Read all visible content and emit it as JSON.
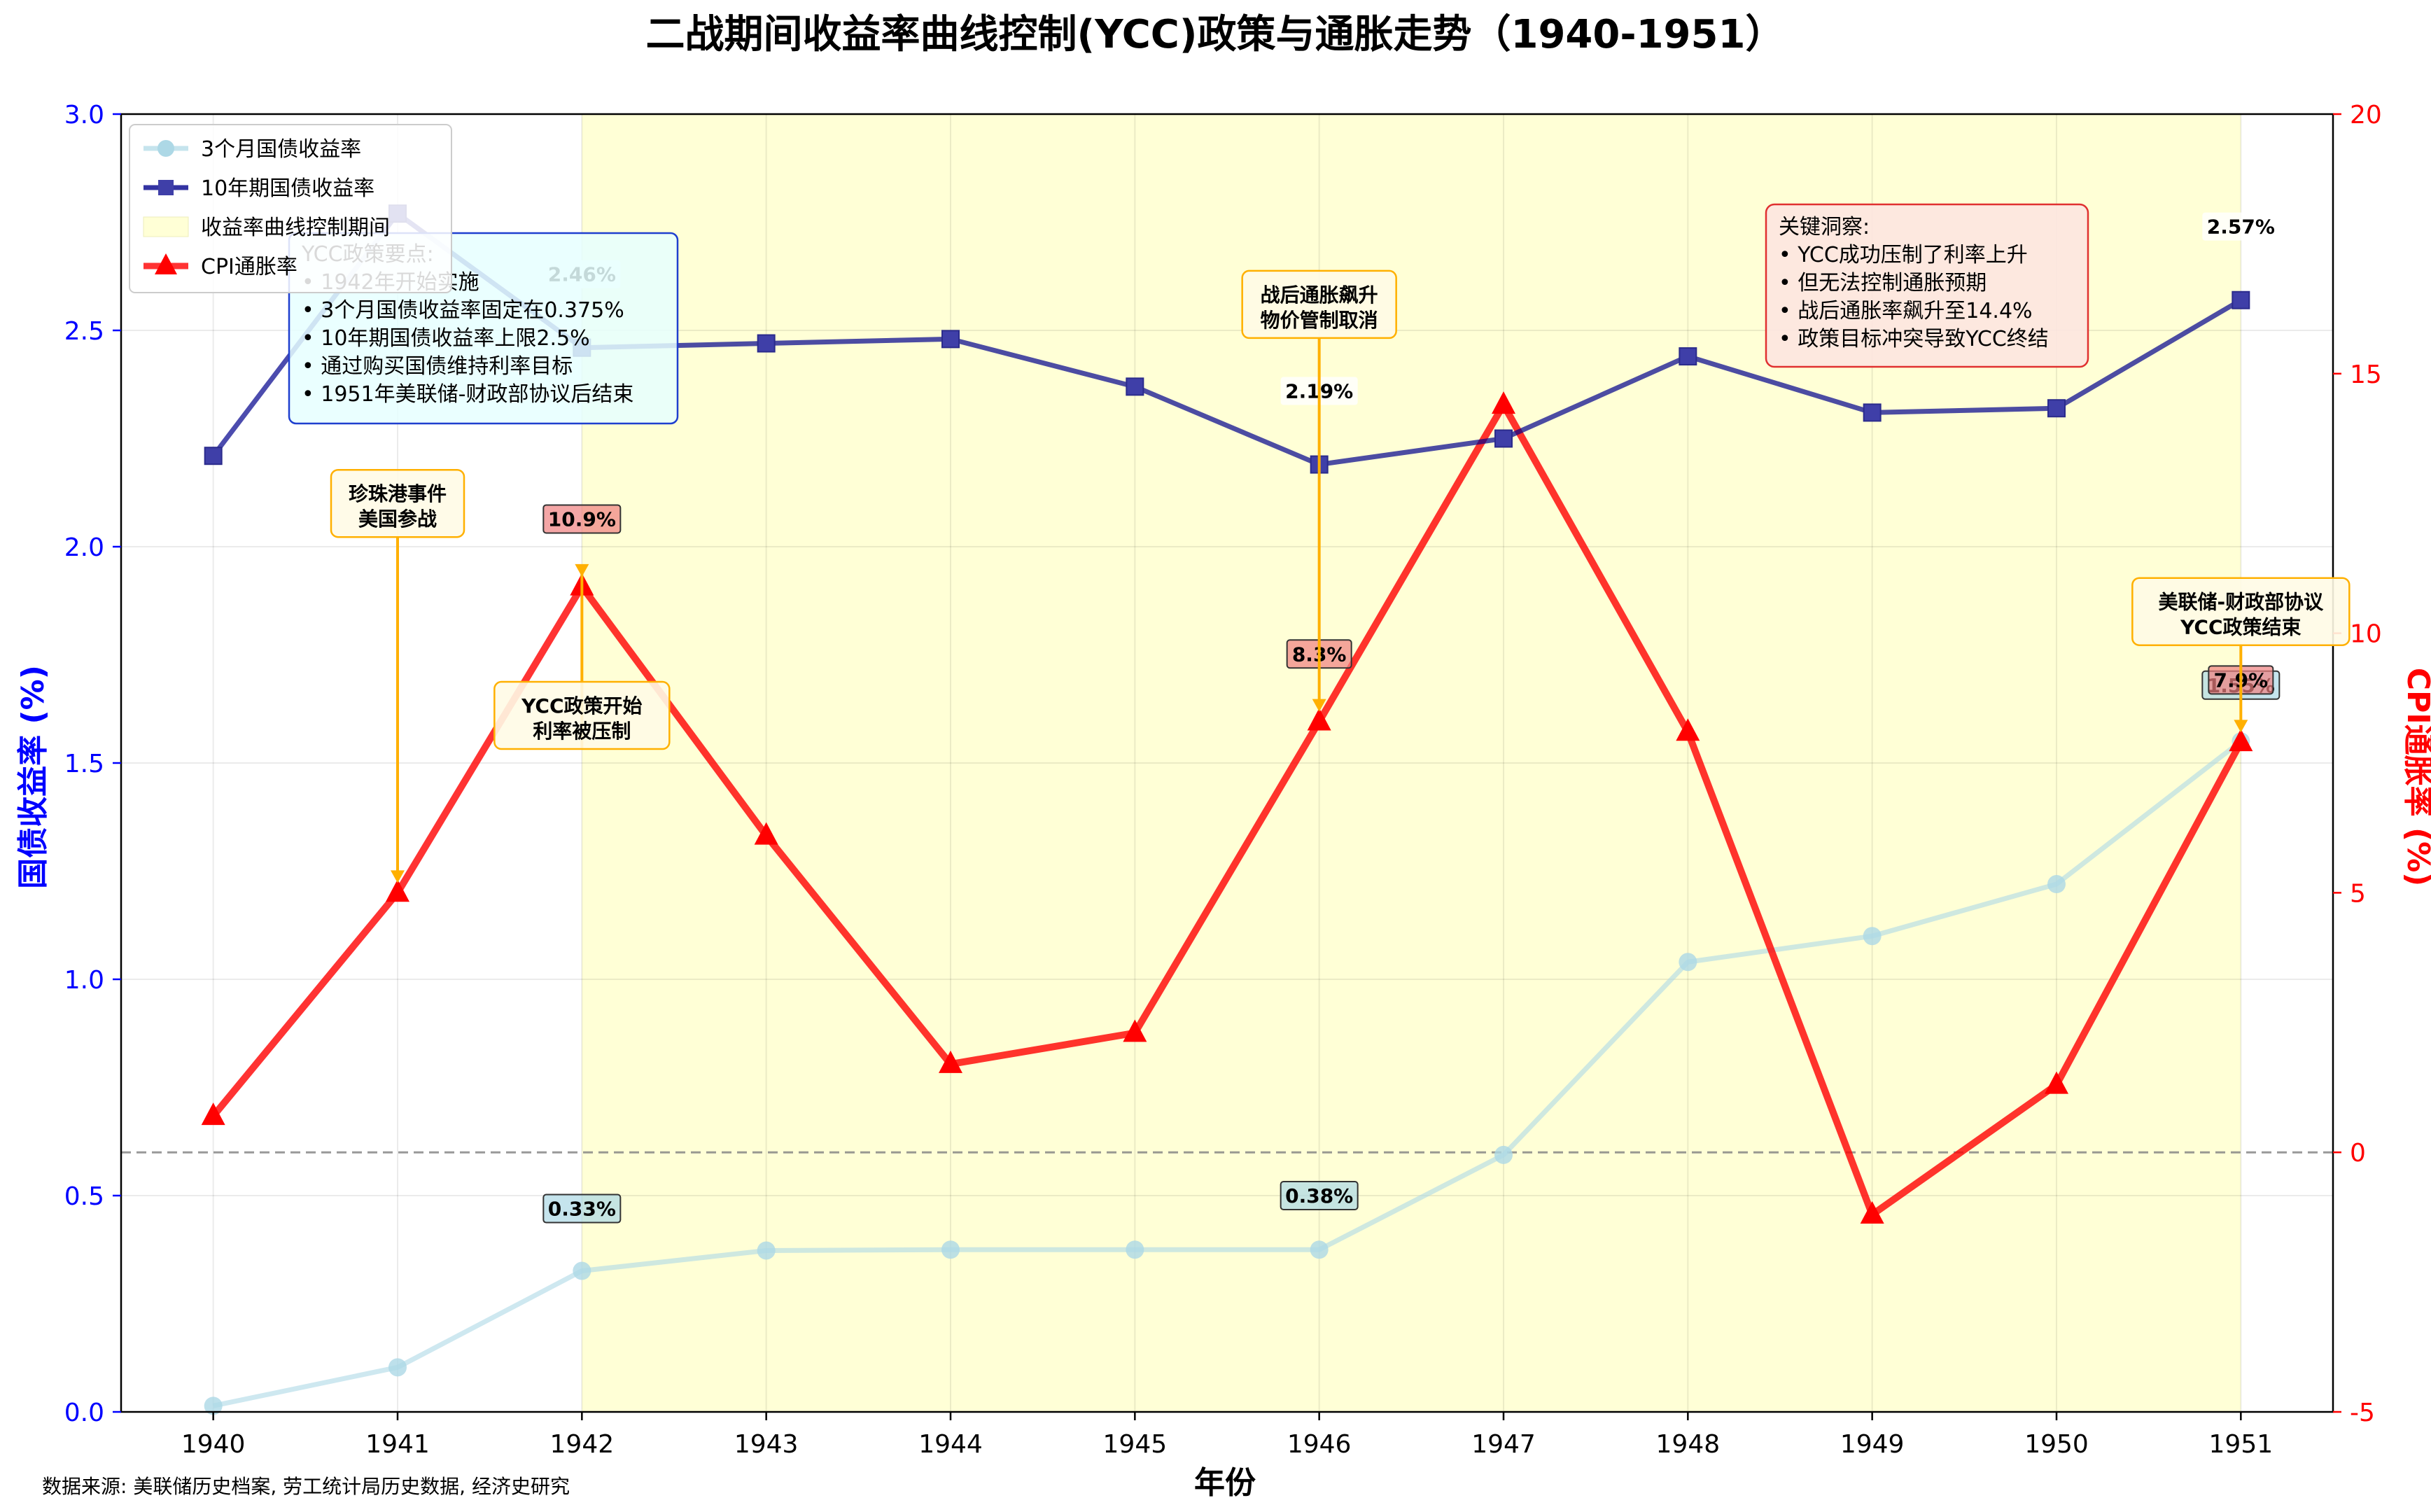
{
  "chart_data": {
    "type": "line",
    "title": "二战期间收益率曲线控制(YCC)政策与通胀走势（1940-1951）",
    "xlabel": "年份",
    "ylabel_left": "国债收益率 (%)",
    "ylabel_right": "CPI通胀率 (%)",
    "source_note": "数据来源: 美联储历史档案, 劳工统计局历史数据, 经济史研究",
    "x": [
      1940,
      1941,
      1942,
      1943,
      1944,
      1945,
      1946,
      1947,
      1948,
      1949,
      1950,
      1951
    ],
    "ylim_left": [
      0,
      3.0
    ],
    "ylim_right": [
      -5,
      20
    ],
    "yticks_left": [
      "0.0",
      "0.5",
      "1.0",
      "1.5",
      "2.0",
      "2.5",
      "3.0"
    ],
    "yticks_right": [
      "-5",
      "0",
      "5",
      "10",
      "15",
      "20"
    ],
    "grid": true,
    "legend_position": "top-left",
    "shaded_period": {
      "label": "收益率曲线控制期间",
      "from": 1942,
      "to": 1951,
      "color": "#ffffd6"
    },
    "zero_line_right": 0,
    "series": [
      {
        "name": "3个月国债收益率",
        "axis": "left",
        "color": "#add8e6",
        "marker": "circle",
        "values": [
          0.014,
          0.103,
          0.326,
          0.373,
          0.375,
          0.375,
          0.375,
          0.594,
          1.04,
          1.1,
          1.22,
          1.55
        ]
      },
      {
        "name": "10年期国债收益率",
        "axis": "left",
        "color": "#00008b",
        "marker": "square",
        "values": [
          2.21,
          2.77,
          2.46,
          2.47,
          2.48,
          2.37,
          2.19,
          2.25,
          2.44,
          2.31,
          2.32,
          2.57
        ]
      },
      {
        "name": "CPI通胀率",
        "axis": "right",
        "color": "#ff0000",
        "marker": "triangle",
        "values": [
          0.7,
          5.0,
          10.9,
          6.1,
          1.7,
          2.3,
          8.3,
          14.4,
          8.1,
          -1.2,
          1.3,
          7.9
        ]
      }
    ],
    "value_labels": [
      {
        "text": "0.33%",
        "x": 1942,
        "axis": "left",
        "y": 0.47,
        "style": "short"
      },
      {
        "text": "0.38%",
        "x": 1946,
        "axis": "left",
        "y": 0.5,
        "style": "short"
      },
      {
        "text": "1.55%",
        "x": 1951,
        "axis": "left",
        "y": 1.68,
        "style": "short"
      },
      {
        "text": "2.46%",
        "x": 1942,
        "axis": "left",
        "y": 2.63,
        "style": "long"
      },
      {
        "text": "2.19%",
        "x": 1946,
        "axis": "left",
        "y": 2.36,
        "style": "long"
      },
      {
        "text": "2.57%",
        "x": 1951,
        "axis": "left",
        "y": 2.74,
        "style": "long"
      },
      {
        "text": "10.9%",
        "x": 1942,
        "axis": "right",
        "y": 12.2,
        "style": "cpi"
      },
      {
        "text": "8.3%",
        "x": 1946,
        "axis": "right",
        "y": 9.6,
        "style": "cpi"
      },
      {
        "text": "7.9%",
        "x": 1951,
        "axis": "right",
        "y": 9.1,
        "style": "cpi"
      }
    ],
    "event_annotations": [
      {
        "lines": [
          "珍珠港事件",
          "美国参战"
        ],
        "x": 1941,
        "y_right": 5.0,
        "box_y_left": 2.1
      },
      {
        "lines": [
          "YCC政策开始",
          "利率被压制"
        ],
        "x": 1942,
        "y_right": 10.9,
        "box_y_left": 1.61
      },
      {
        "lines": [
          "战后通胀飙升",
          "物价管制取消"
        ],
        "x": 1946,
        "y_right": 8.3,
        "box_y_left": 2.56
      },
      {
        "lines": [
          "美联储-财政部协议",
          "YCC政策结束"
        ],
        "x": 1951,
        "y_right": 7.9,
        "box_y_left": 1.85
      }
    ],
    "policy_box": {
      "lines": [
        "YCC政策要点:",
        "• 1942年开始实施",
        "• 3个月国债收益率固定在0.375%",
        "• 10年期国债收益率上限2.5%",
        "• 通过购买国债维持利率目标",
        "• 1951年美联储-财政部协议后结束"
      ]
    },
    "insight_box": {
      "lines": [
        "关键洞察:",
        "• YCC成功压制了利率上升",
        "• 但无法控制通胀预期",
        "• 战后通胀率飙升至14.4%",
        "• 政策目标冲突导致YCC终结"
      ]
    }
  },
  "colors": {
    "left_axis": "#0000ff",
    "right_axis": "#ff0000",
    "event_arrow": "#ffb000"
  }
}
